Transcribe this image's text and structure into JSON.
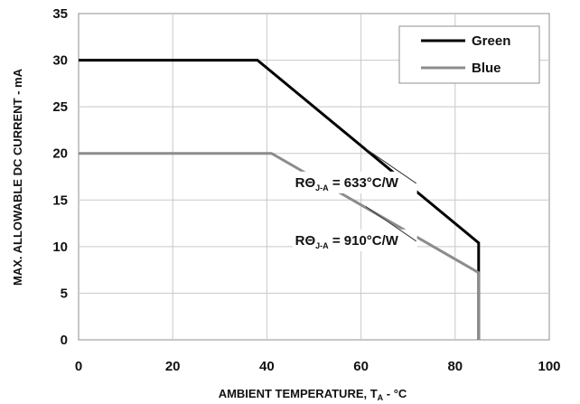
{
  "chart_data": {
    "type": "line",
    "title": "",
    "xlabel": "AMBIENT TEMPERATURE, T",
    "xlabel_sub": "A",
    "xlabel_suffix": " - °C",
    "ylabel": "MAX. ALLOWABLE DC CURRENT - mA",
    "xlim": [
      0,
      100
    ],
    "ylim": [
      0,
      35
    ],
    "xticks": [
      0,
      20,
      40,
      60,
      80,
      100
    ],
    "yticks": [
      0,
      5,
      10,
      15,
      20,
      25,
      30,
      35
    ],
    "grid": true,
    "legend_position": "top-right",
    "series": [
      {
        "name": "Green",
        "color": "#000000",
        "points": [
          [
            0,
            30
          ],
          [
            38,
            30
          ],
          [
            85,
            10.4
          ],
          [
            85,
            0
          ]
        ]
      },
      {
        "name": "Blue",
        "color": "#8c8c8c",
        "points": [
          [
            0,
            20
          ],
          [
            41,
            20
          ],
          [
            85,
            7.2
          ],
          [
            85,
            0
          ]
        ]
      }
    ],
    "annotations": [
      {
        "text_main": "RΘ",
        "text_sub": "J-A",
        "text_value": " = 633°C/W",
        "anchor": [
          46,
          16.4
        ],
        "target": [
          61,
          20.5
        ]
      },
      {
        "text_main": "RΘ",
        "text_sub": "J-A",
        "text_value": " = 910°C/W",
        "anchor": [
          46,
          10.2
        ],
        "target": [
          61,
          14.3
        ]
      }
    ]
  }
}
